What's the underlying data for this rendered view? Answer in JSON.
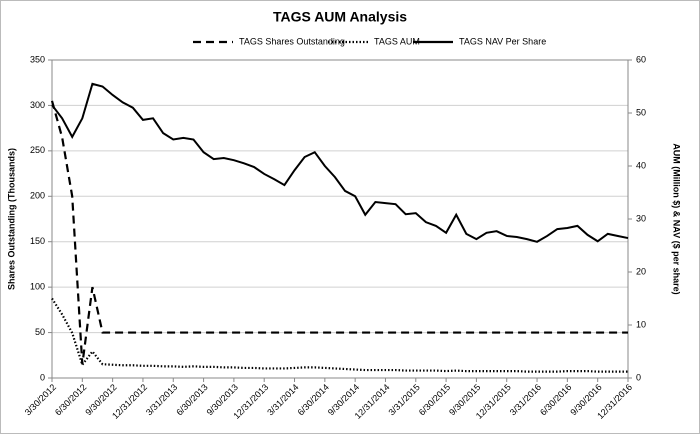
{
  "chart_data": {
    "type": "line",
    "title": "TAGS AUM Analysis",
    "y_label": "Shares Outstanding (Thousands)",
    "y2_label": "AUM (Million $) & NAV ($ per share)",
    "categories": [
      "3/30/2012",
      null,
      null,
      "6/30/2012",
      null,
      null,
      "9/30/2012",
      null,
      null,
      "12/31/2012",
      null,
      null,
      "3/31/2013",
      null,
      null,
      "6/30/2013",
      null,
      null,
      "9/30/2013",
      null,
      null,
      "12/31/2013",
      null,
      null,
      "3/31/2014",
      null,
      null,
      "6/30/2014",
      null,
      null,
      "9/30/2014",
      null,
      null,
      "12/31/2014",
      null,
      null,
      "3/31/2015",
      null,
      null,
      "6/30/2015",
      null,
      null,
      "9/30/2015",
      null,
      null,
      "12/31/2015",
      null,
      null,
      "3/31/2016",
      null,
      null,
      "6/30/2016",
      null,
      null,
      "9/30/2016",
      null,
      null,
      "12/31/2016"
    ],
    "ylim": [
      0,
      350
    ],
    "yticks": [
      0,
      50,
      100,
      150,
      200,
      250,
      300,
      350
    ],
    "y2lim": [
      0,
      60
    ],
    "y2ticks": [
      0,
      10,
      20,
      30,
      40,
      50,
      60
    ],
    "grid": true,
    "series": [
      {
        "name": "TAGS Shares Outstanding",
        "color": "#000000",
        "dash": "dashed",
        "values": [
          305,
          265,
          200,
          15,
          100,
          50,
          50,
          50,
          50,
          50,
          50,
          50,
          50,
          50,
          50,
          50,
          50,
          50,
          50,
          50,
          50,
          50,
          50,
          50,
          50,
          50,
          50,
          50,
          50,
          50,
          50,
          50,
          50,
          50,
          50,
          50,
          50,
          50,
          50,
          50,
          50,
          50,
          50,
          50,
          50,
          50,
          50,
          50,
          50,
          50,
          50,
          50,
          50,
          50,
          50,
          50,
          50,
          50
        ]
      },
      {
        "name": "TAGS AUM",
        "color": "#000000",
        "dash": "dotted",
        "axis": "y2",
        "values": [
          15,
          12,
          8.5,
          2.5,
          5,
          2.6,
          2.5,
          2.4,
          2.4,
          2.3,
          2.3,
          2.2,
          2.2,
          2.1,
          2.2,
          2.1,
          2.1,
          2.0,
          2.0,
          1.9,
          1.9,
          1.8,
          1.8,
          1.8,
          1.9,
          2.0,
          2.0,
          1.9,
          1.8,
          1.7,
          1.6,
          1.5,
          1.5,
          1.5,
          1.5,
          1.4,
          1.4,
          1.4,
          1.4,
          1.3,
          1.4,
          1.3,
          1.3,
          1.3,
          1.3,
          1.3,
          1.3,
          1.2,
          1.2,
          1.2,
          1.2,
          1.3,
          1.3,
          1.3,
          1.2,
          1.2,
          1.2,
          1.2
        ]
      },
      {
        "name": "TAGS NAV Per Share",
        "color": "#000000",
        "dash": "solid",
        "axis": "y2",
        "values": [
          51.5,
          49,
          45.5,
          49,
          55.5,
          55,
          53.4,
          52,
          51,
          48.7,
          49,
          46.2,
          45,
          45.3,
          45,
          42.6,
          41.3,
          41.5,
          41.1,
          40.5,
          39.8,
          38.5,
          37.5,
          36.4,
          39.2,
          41.7,
          42.6,
          40,
          37.9,
          35.3,
          34.3,
          30.8,
          33.2,
          33,
          32.8,
          30.9,
          31.1,
          29.4,
          28.7,
          27.4,
          30.8,
          27.2,
          26.2,
          27.4,
          27.7,
          26.8,
          26.6,
          26.2,
          25.7,
          26.8,
          28.1,
          28.3,
          28.7,
          27,
          25.8,
          27.2,
          26.8,
          26.4
        ]
      }
    ]
  }
}
